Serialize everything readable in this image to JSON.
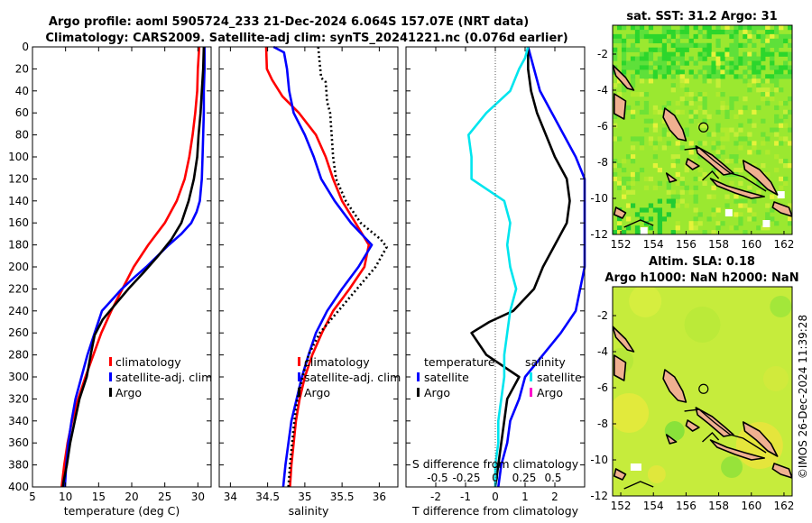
{
  "header": {
    "line1": "Argo profile: aoml 5905724_233 21-Dec-2024 6.064S 157.07E (NRT data)",
    "line2": "Climatology: CARS2009. Satellite-adj clim: synTS_20241221.nc (0.076d earlier)"
  },
  "colors": {
    "climatology": "#ff0000",
    "satellite": "#0000ff",
    "argo": "#000000",
    "sal_diff": "#00e5ee",
    "sal_argo_diff": "#ff00cc"
  },
  "chart_data": [
    {
      "type": "line",
      "id": "temperature",
      "xlabel": "temperature (deg C)",
      "ylabel": "",
      "xlim": [
        5,
        32
      ],
      "ylim": [
        400,
        0
      ],
      "xticks": [
        5,
        10,
        15,
        20,
        25,
        30
      ],
      "yticks": [
        0,
        20,
        40,
        60,
        80,
        100,
        120,
        140,
        160,
        180,
        200,
        220,
        240,
        260,
        280,
        300,
        320,
        340,
        360,
        380,
        400
      ],
      "legend": [
        "climatology",
        "satellite-adj. clim",
        "Argo"
      ],
      "series": [
        {
          "name": "climatology",
          "color": "#ff0000",
          "points": [
            [
              30.2,
              0
            ],
            [
              30.0,
              20
            ],
            [
              29.9,
              40
            ],
            [
              29.6,
              60
            ],
            [
              29.2,
              80
            ],
            [
              28.7,
              100
            ],
            [
              28.0,
              120
            ],
            [
              26.8,
              140
            ],
            [
              25.0,
              160
            ],
            [
              22.5,
              180
            ],
            [
              20.3,
              200
            ],
            [
              18.6,
              220
            ],
            [
              16.9,
              240
            ],
            [
              15.4,
              260
            ],
            [
              14.2,
              280
            ],
            [
              13.0,
              300
            ],
            [
              11.9,
              320
            ],
            [
              11.0,
              340
            ],
            [
              10.3,
              360
            ],
            [
              9.8,
              380
            ],
            [
              9.4,
              400
            ]
          ]
        },
        {
          "name": "satellite-adj. clim",
          "color": "#0000ff",
          "points": [
            [
              31.0,
              0
            ],
            [
              31.0,
              20
            ],
            [
              30.9,
              40
            ],
            [
              30.9,
              60
            ],
            [
              30.8,
              80
            ],
            [
              30.7,
              100
            ],
            [
              30.6,
              120
            ],
            [
              30.3,
              140
            ],
            [
              29.8,
              150
            ],
            [
              29.0,
              160
            ],
            [
              27.5,
              170
            ],
            [
              25.6,
              180
            ],
            [
              23.9,
              190
            ],
            [
              22.2,
              200
            ],
            [
              20.3,
              210
            ],
            [
              18.5,
              220
            ],
            [
              17.0,
              230
            ],
            [
              15.5,
              240
            ],
            [
              14.4,
              260
            ],
            [
              13.3,
              280
            ],
            [
              12.4,
              300
            ],
            [
              11.5,
              320
            ],
            [
              10.9,
              340
            ],
            [
              10.4,
              360
            ],
            [
              10.1,
              380
            ],
            [
              9.9,
              400
            ]
          ]
        },
        {
          "name": "Argo",
          "color": "#000000",
          "points": [
            [
              30.9,
              0
            ],
            [
              30.8,
              20
            ],
            [
              30.6,
              40
            ],
            [
              30.4,
              60
            ],
            [
              30.1,
              80
            ],
            [
              29.9,
              100
            ],
            [
              29.4,
              120
            ],
            [
              28.6,
              140
            ],
            [
              27.5,
              160
            ],
            [
              26.0,
              175
            ],
            [
              24.0,
              190
            ],
            [
              21.8,
              205
            ],
            [
              19.5,
              220
            ],
            [
              17.4,
              235
            ],
            [
              15.6,
              248
            ],
            [
              14.4,
              262
            ],
            [
              13.8,
              280
            ],
            [
              13.2,
              300
            ],
            [
              12.1,
              320
            ],
            [
              11.4,
              340
            ],
            [
              10.7,
              360
            ],
            [
              10.2,
              380
            ],
            [
              9.7,
              395
            ],
            [
              9.6,
              400
            ]
          ]
        }
      ]
    },
    {
      "type": "line",
      "id": "salinity",
      "xlabel": "salinity",
      "xlim": [
        33.85,
        36.25
      ],
      "ylim": [
        400,
        0
      ],
      "xticks": [
        34,
        34.5,
        35,
        35.5,
        36
      ],
      "legend": [
        "climatology",
        "satellite-adj. clim",
        "Argo"
      ],
      "series": [
        {
          "name": "climatology",
          "color": "#ff0000",
          "points": [
            [
              34.48,
              0
            ],
            [
              34.49,
              20
            ],
            [
              34.56,
              30
            ],
            [
              34.7,
              45
            ],
            [
              34.92,
              60
            ],
            [
              35.15,
              80
            ],
            [
              35.28,
              100
            ],
            [
              35.38,
              120
            ],
            [
              35.5,
              140
            ],
            [
              35.68,
              160
            ],
            [
              35.86,
              180
            ],
            [
              35.8,
              200
            ],
            [
              35.6,
              220
            ],
            [
              35.38,
              240
            ],
            [
              35.23,
              260
            ],
            [
              35.1,
              280
            ],
            [
              35.0,
              300
            ],
            [
              34.93,
              320
            ],
            [
              34.88,
              340
            ],
            [
              34.85,
              360
            ],
            [
              34.82,
              380
            ],
            [
              34.8,
              400
            ]
          ]
        },
        {
          "name": "satellite-adj. clim",
          "color": "#0000ff",
          "points": [
            [
              34.58,
              0
            ],
            [
              34.72,
              5
            ],
            [
              34.76,
              20
            ],
            [
              34.79,
              40
            ],
            [
              34.85,
              60
            ],
            [
              35.0,
              80
            ],
            [
              35.12,
              100
            ],
            [
              35.22,
              120
            ],
            [
              35.4,
              140
            ],
            [
              35.62,
              160
            ],
            [
              35.9,
              180
            ],
            [
              35.72,
              200
            ],
            [
              35.5,
              220
            ],
            [
              35.3,
              240
            ],
            [
              35.15,
              260
            ],
            [
              35.05,
              280
            ],
            [
              34.96,
              300
            ],
            [
              34.89,
              320
            ],
            [
              34.82,
              340
            ],
            [
              34.78,
              360
            ],
            [
              34.74,
              380
            ],
            [
              34.71,
              400
            ]
          ]
        },
        {
          "name": "Argo",
          "color": "#000000",
          "dashed": true,
          "points": [
            [
              35.18,
              0
            ],
            [
              35.2,
              15
            ],
            [
              35.22,
              28
            ],
            [
              35.28,
              32
            ],
            [
              35.3,
              50
            ],
            [
              35.34,
              60
            ],
            [
              35.36,
              80
            ],
            [
              35.38,
              100
            ],
            [
              35.42,
              120
            ],
            [
              35.55,
              140
            ],
            [
              35.75,
              160
            ],
            [
              36.02,
              175
            ],
            [
              36.1,
              182
            ],
            [
              35.95,
              200
            ],
            [
              35.7,
              220
            ],
            [
              35.45,
              240
            ],
            [
              35.2,
              260
            ],
            [
              35.05,
              280
            ],
            [
              34.97,
              300
            ],
            [
              34.9,
              320
            ],
            [
              34.86,
              340
            ],
            [
              34.83,
              360
            ],
            [
              34.8,
              380
            ],
            [
              34.78,
              400
            ]
          ]
        }
      ]
    },
    {
      "type": "line",
      "id": "differences",
      "xlabel": "T difference from climatology",
      "xlabel_top": "S difference from climatology",
      "xlim": [
        -3,
        3
      ],
      "ylim": [
        400,
        0
      ],
      "xticks": [
        -2,
        -1,
        0,
        1,
        2
      ],
      "sticks_label": [
        "-0.5",
        "-0.25",
        "0",
        "0.25",
        "0.5"
      ],
      "legend_t": {
        "title": "temperature",
        "items": [
          "satellite",
          "Argo"
        ]
      },
      "legend_s": {
        "title": "salinity",
        "items": [
          "satellite",
          "Argo"
        ]
      },
      "series": [
        {
          "name": "T satellite",
          "color": "#0000ff",
          "points": [
            [
              1.1,
              0
            ],
            [
              1.2,
              10
            ],
            [
              1.3,
              20
            ],
            [
              1.5,
              40
            ],
            [
              1.9,
              60
            ],
            [
              2.3,
              80
            ],
            [
              2.7,
              100
            ],
            [
              3.0,
              120
            ],
            [
              3.0,
              200
            ],
            [
              2.7,
              240
            ],
            [
              2.2,
              260
            ],
            [
              1.6,
              280
            ],
            [
              1.0,
              300
            ],
            [
              0.8,
              320
            ],
            [
              0.5,
              340
            ],
            [
              0.4,
              360
            ],
            [
              0.2,
              380
            ],
            [
              0.1,
              400
            ]
          ]
        },
        {
          "name": "T Argo",
          "color": "#000000",
          "points": [
            [
              1.1,
              0
            ],
            [
              1.1,
              20
            ],
            [
              1.2,
              40
            ],
            [
              1.4,
              60
            ],
            [
              1.7,
              80
            ],
            [
              2.0,
              100
            ],
            [
              2.4,
              120
            ],
            [
              2.5,
              140
            ],
            [
              2.4,
              160
            ],
            [
              2.0,
              180
            ],
            [
              1.6,
              200
            ],
            [
              1.3,
              220
            ],
            [
              0.6,
              240
            ],
            [
              -0.2,
              250
            ],
            [
              -0.8,
              260
            ],
            [
              -0.3,
              280
            ],
            [
              0.8,
              300
            ],
            [
              0.4,
              320
            ],
            [
              0.3,
              340
            ],
            [
              0.2,
              360
            ],
            [
              0.1,
              380
            ],
            [
              0.0,
              400
            ]
          ]
        },
        {
          "name": "S satellite",
          "color": "#00e5ee",
          "points": [
            [
              1.1,
              0
            ],
            [
              1.0,
              10
            ],
            [
              0.8,
              20
            ],
            [
              0.5,
              40
            ],
            [
              -0.3,
              60
            ],
            [
              -0.9,
              80
            ],
            [
              -0.8,
              100
            ],
            [
              -0.8,
              120
            ],
            [
              0.3,
              140
            ],
            [
              0.5,
              160
            ],
            [
              0.4,
              180
            ],
            [
              0.5,
              200
            ],
            [
              0.7,
              220
            ],
            [
              0.5,
              240
            ],
            [
              0.4,
              260
            ],
            [
              0.3,
              280
            ],
            [
              0.3,
              300
            ],
            [
              0.2,
              320
            ],
            [
              0.1,
              340
            ],
            [
              0.1,
              360
            ],
            [
              0.0,
              380
            ],
            [
              0.0,
              400
            ]
          ]
        }
      ]
    },
    {
      "type": "heatmap",
      "id": "sst_map",
      "title": "sat. SST: 31.2 Argo: 31",
      "xlim": [
        151.5,
        162.5
      ],
      "ylim": [
        -12,
        -0.4
      ],
      "xticks": [
        152,
        154,
        156,
        158,
        160,
        162
      ],
      "yticks": [
        -2,
        -4,
        -6,
        -8,
        -10,
        -12
      ],
      "marker": [
        157.07,
        -6.064
      ]
    },
    {
      "type": "heatmap",
      "id": "sla_map",
      "title_line1": "Altim. SLA: 0.18",
      "title_line2": "Argo h1000: NaN h2000: NaN",
      "xlim": [
        151.5,
        162.5
      ],
      "ylim": [
        -12,
        -0.4
      ],
      "xticks": [
        152,
        154,
        156,
        158,
        160,
        162
      ],
      "yticks": [
        -2,
        -4,
        -6,
        -8,
        -10,
        -12
      ],
      "marker": [
        157.07,
        -6.064
      ]
    }
  ],
  "credit": "©IMOS 26-Dec-2024 11:39:28"
}
